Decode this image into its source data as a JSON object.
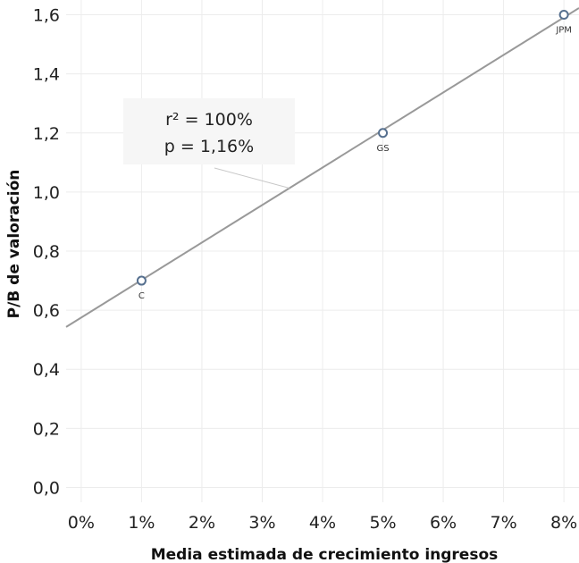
{
  "chart_data": {
    "type": "scatter",
    "xlabel": "Media estimada de crecimiento ingresos",
    "ylabel": "P/B de valoración",
    "xlim": [
      -0.0025,
      0.0825
    ],
    "ylim": [
      -0.05,
      1.65
    ],
    "x_ticks": [
      {
        "value": 0.0,
        "label": "0%"
      },
      {
        "value": 0.01,
        "label": "1%"
      },
      {
        "value": 0.02,
        "label": "2%"
      },
      {
        "value": 0.03,
        "label": "3%"
      },
      {
        "value": 0.04,
        "label": "4%"
      },
      {
        "value": 0.05,
        "label": "5%"
      },
      {
        "value": 0.06,
        "label": "6%"
      },
      {
        "value": 0.07,
        "label": "7%"
      },
      {
        "value": 0.08,
        "label": "8%"
      }
    ],
    "y_ticks": [
      {
        "value": 0.0,
        "label": "0,0"
      },
      {
        "value": 0.2,
        "label": "0,2"
      },
      {
        "value": 0.4,
        "label": "0,4"
      },
      {
        "value": 0.6,
        "label": "0,6"
      },
      {
        "value": 0.8,
        "label": "0,8"
      },
      {
        "value": 1.0,
        "label": "1,0"
      },
      {
        "value": 1.2,
        "label": "1,2"
      },
      {
        "value": 1.4,
        "label": "1,4"
      },
      {
        "value": 1.6,
        "label": "1,6"
      }
    ],
    "points": [
      {
        "label": "C",
        "x": 0.01,
        "y": 0.7
      },
      {
        "label": "GS",
        "x": 0.05,
        "y": 1.2
      },
      {
        "label": "JPM",
        "x": 0.08,
        "y": 1.6
      }
    ],
    "trendline": {
      "slope": 12.7,
      "intercept": 0.575
    },
    "annotation": {
      "lines": [
        "r² = 100%",
        "p = 1,16%"
      ],
      "pointer_x": 0.0345
    },
    "grid": true,
    "colors": {
      "marker": "#56708f",
      "trendline": "#999999",
      "annotation_bg": "#f6f6f6",
      "annotation_pointer": "#c8c8c8"
    }
  }
}
